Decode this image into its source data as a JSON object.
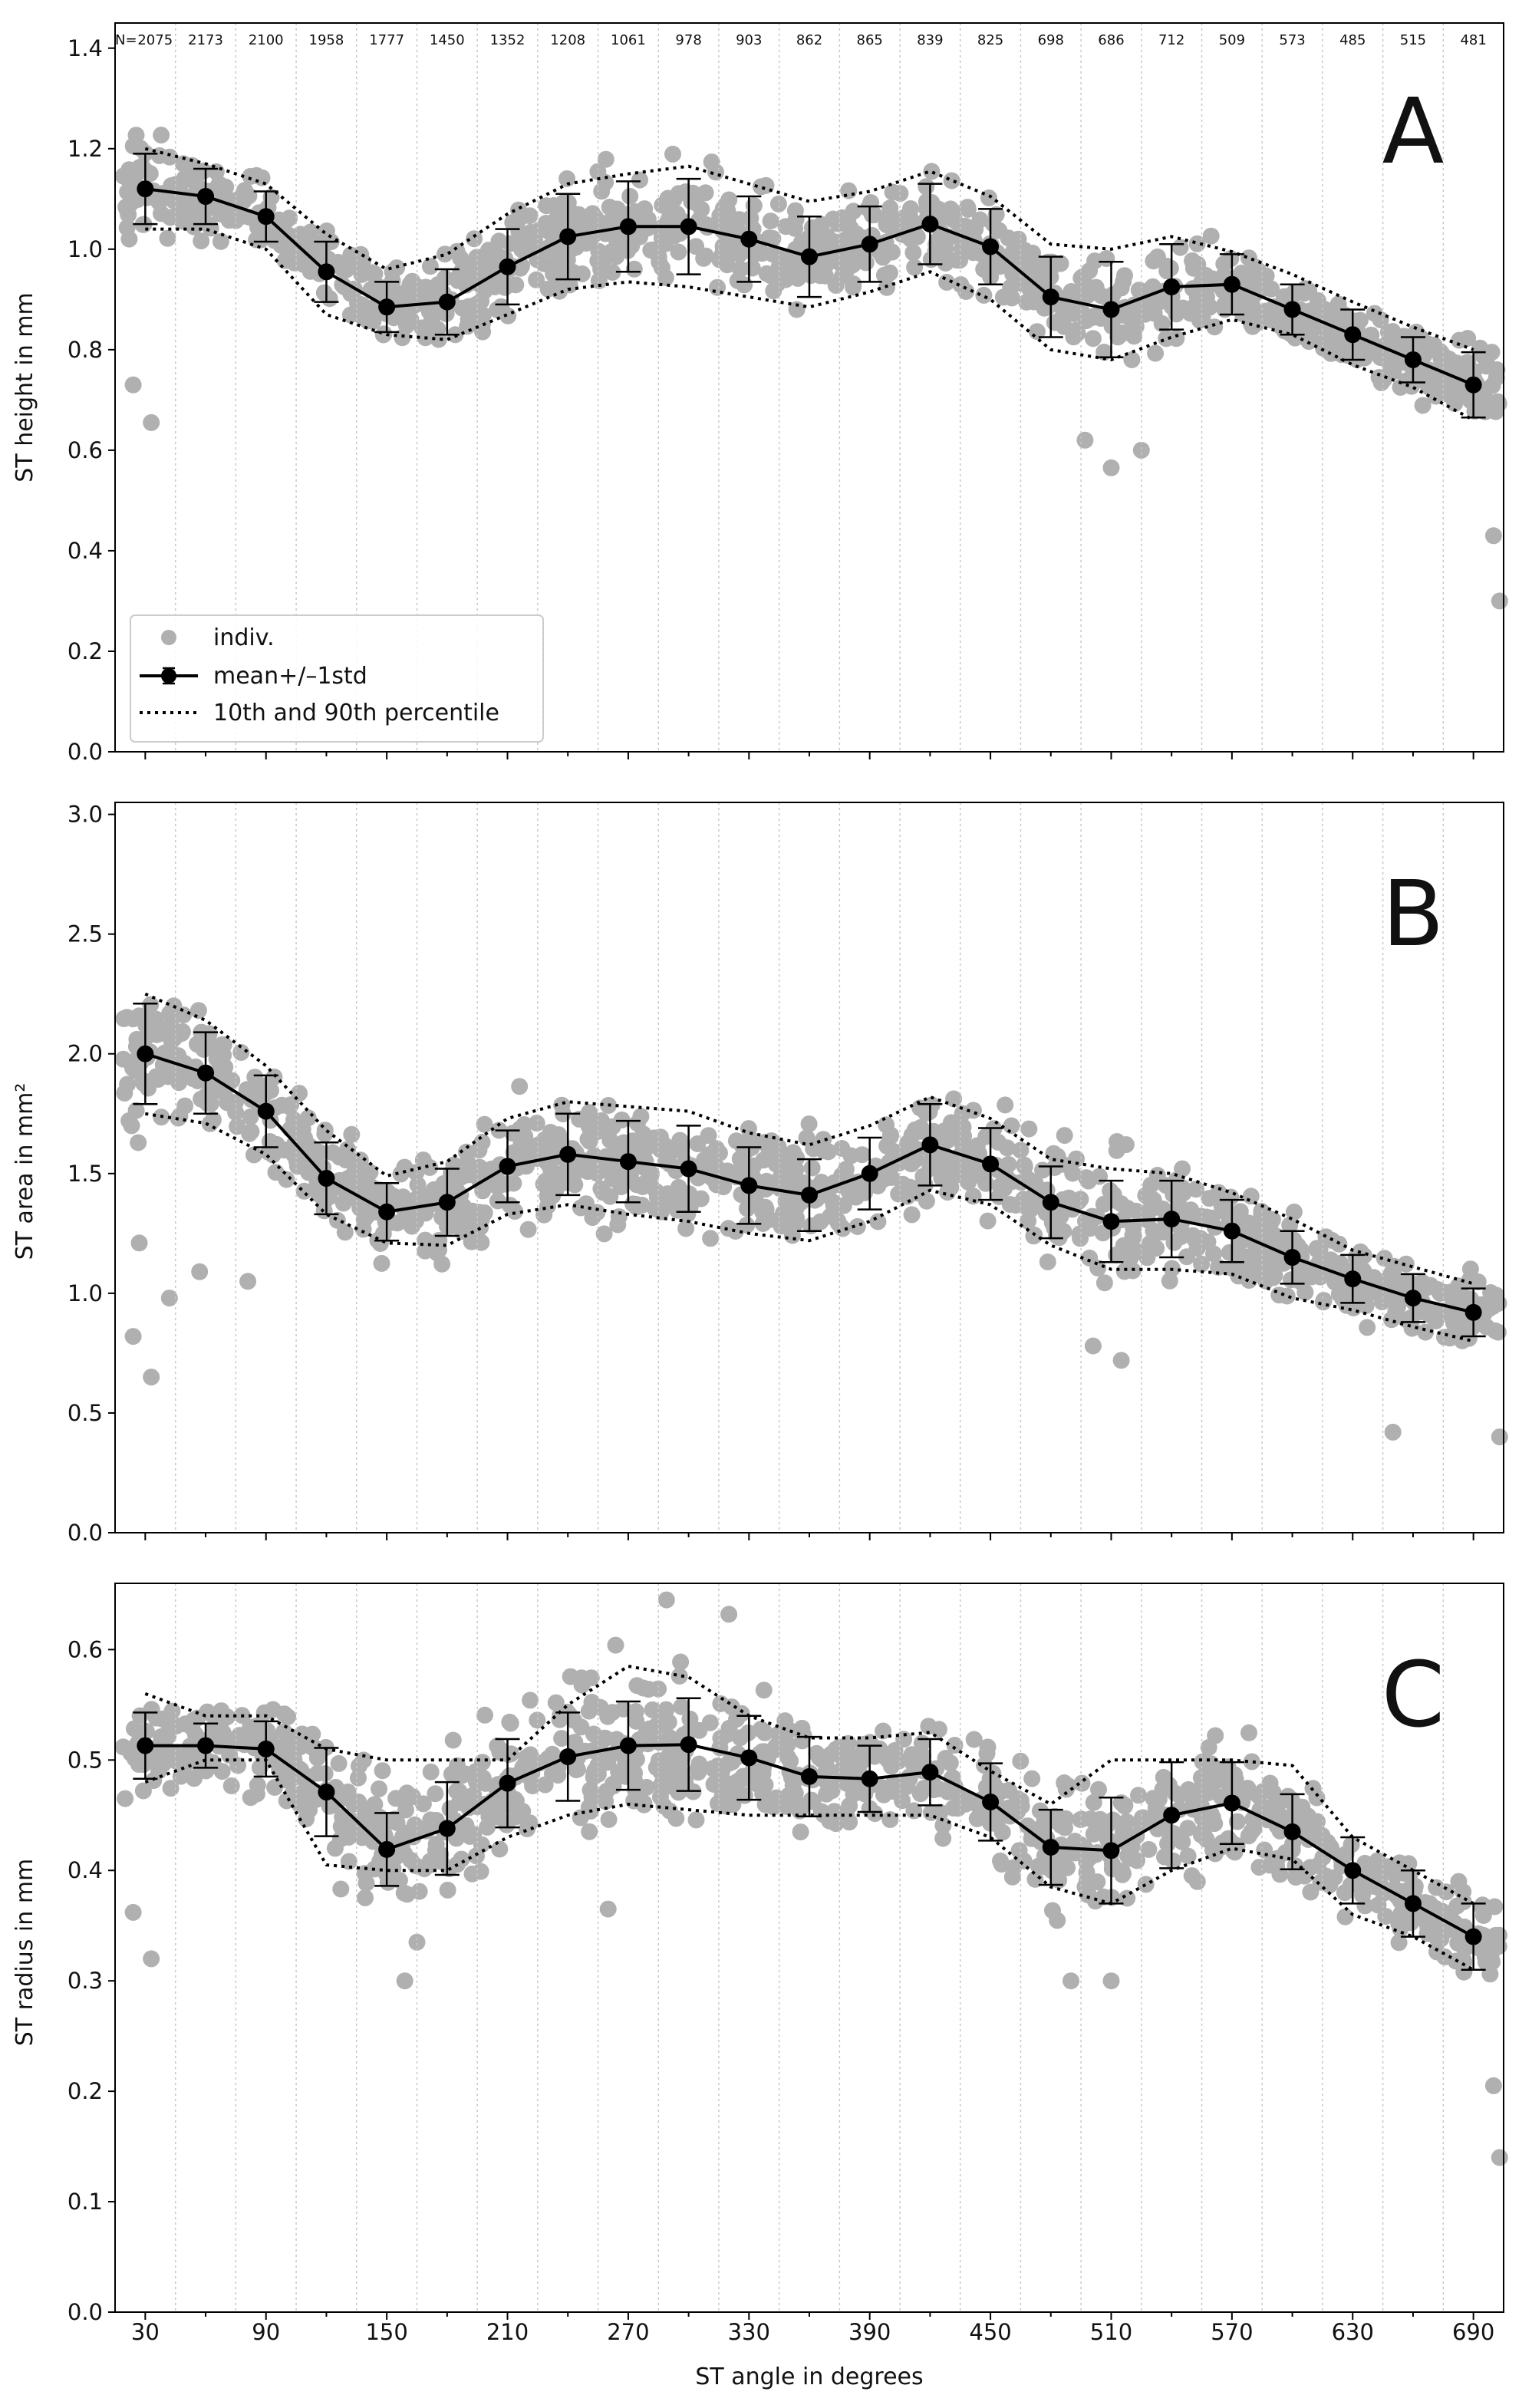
{
  "figure": {
    "xlabel": "ST angle in degrees",
    "x_ticks": [
      30,
      90,
      150,
      210,
      270,
      330,
      390,
      450,
      510,
      570,
      630,
      690
    ],
    "xlim": [
      15,
      705
    ],
    "bins_x": [
      30,
      60,
      90,
      120,
      150,
      180,
      210,
      240,
      270,
      300,
      330,
      360,
      390,
      420,
      450,
      480,
      510,
      540,
      570,
      600,
      630,
      660,
      690
    ],
    "colors": {
      "indiv": "#b0b0b0",
      "mean": "#000000",
      "percentile": "#000000",
      "grid": "#c8c8c8"
    }
  },
  "counts": {
    "prefix": "N=",
    "values": [
      "2075",
      "2173",
      "2100",
      "1958",
      "1777",
      "1450",
      "1352",
      "1208",
      "1061",
      "978",
      "903",
      "862",
      "865",
      "839",
      "825",
      "698",
      "686",
      "712",
      "509",
      "573",
      "485",
      "515",
      "481"
    ]
  },
  "legend": {
    "indiv": "indiv.",
    "mean": "mean+/–1std",
    "percentile": "10th and 90th percentile"
  },
  "chart_data": [
    {
      "type": "scatter",
      "panel": "A",
      "title": "",
      "xlabel": "ST angle in degrees",
      "ylabel": "ST height in mm",
      "ylim": [
        0,
        1.45
      ],
      "y_ticks": [
        0.0,
        0.2,
        0.4,
        0.6,
        0.8,
        1.0,
        1.2,
        1.4
      ],
      "y_tick_labels": [
        "0.0",
        "0.2",
        "0.4",
        "0.6",
        "0.8",
        "1.0",
        "1.2",
        "1.4"
      ],
      "x": [
        30,
        60,
        90,
        120,
        150,
        180,
        210,
        240,
        270,
        300,
        330,
        360,
        390,
        420,
        450,
        480,
        510,
        540,
        570,
        600,
        630,
        660,
        690
      ],
      "series": [
        {
          "name": "mean+/–1std",
          "values": [
            1.12,
            1.105,
            1.065,
            0.955,
            0.885,
            0.895,
            0.965,
            1.025,
            1.045,
            1.045,
            1.02,
            0.985,
            1.01,
            1.05,
            1.005,
            0.905,
            0.88,
            0.925,
            0.93,
            0.88,
            0.83,
            0.78,
            0.73
          ],
          "std": [
            0.07,
            0.055,
            0.05,
            0.06,
            0.05,
            0.065,
            0.075,
            0.085,
            0.09,
            0.095,
            0.085,
            0.08,
            0.075,
            0.08,
            0.075,
            0.08,
            0.095,
            0.085,
            0.06,
            0.05,
            0.05,
            0.045,
            0.065
          ]
        },
        {
          "name": "90th percentile",
          "values": [
            1.2,
            1.17,
            1.13,
            1.03,
            0.96,
            0.99,
            1.07,
            1.13,
            1.15,
            1.165,
            1.13,
            1.095,
            1.115,
            1.155,
            1.105,
            1.01,
            1.0,
            1.025,
            0.995,
            0.95,
            0.895,
            0.845,
            0.8
          ]
        },
        {
          "name": "10th percentile",
          "values": [
            1.04,
            1.04,
            1.0,
            0.87,
            0.83,
            0.82,
            0.87,
            0.92,
            0.935,
            0.925,
            0.905,
            0.885,
            0.915,
            0.955,
            0.9,
            0.8,
            0.78,
            0.825,
            0.86,
            0.83,
            0.77,
            0.725,
            0.66
          ]
        }
      ],
      "scatter_spread": [
        0.12,
        0.1,
        0.09,
        0.1,
        0.09,
        0.1,
        0.12,
        0.13,
        0.14,
        0.15,
        0.13,
        0.12,
        0.12,
        0.13,
        0.12,
        0.12,
        0.13,
        0.12,
        0.1,
        0.09,
        0.08,
        0.08,
        0.1
      ],
      "outliers": [
        [
          24,
          0.73
        ],
        [
          33,
          0.655
        ],
        [
          497,
          0.62
        ],
        [
          510,
          0.565
        ],
        [
          525,
          0.6
        ],
        [
          700,
          0.43
        ],
        [
          703,
          0.3
        ]
      ]
    },
    {
      "type": "scatter",
      "panel": "B",
      "title": "",
      "xlabel": "ST angle in degrees",
      "ylabel": "ST area in mm²",
      "ylim": [
        0,
        3.05
      ],
      "y_ticks": [
        0.0,
        0.5,
        1.0,
        1.5,
        2.0,
        2.5,
        3.0
      ],
      "y_tick_labels": [
        "0.0",
        "0.5",
        "1.0",
        "1.5",
        "2.0",
        "2.5",
        "3.0"
      ],
      "x": [
        30,
        60,
        90,
        120,
        150,
        180,
        210,
        240,
        270,
        300,
        330,
        360,
        390,
        420,
        450,
        480,
        510,
        540,
        570,
        600,
        630,
        660,
        690
      ],
      "series": [
        {
          "name": "mean+/–1std",
          "values": [
            2.0,
            1.92,
            1.76,
            1.48,
            1.34,
            1.38,
            1.53,
            1.58,
            1.55,
            1.52,
            1.45,
            1.41,
            1.5,
            1.62,
            1.54,
            1.38,
            1.3,
            1.31,
            1.26,
            1.15,
            1.06,
            0.98,
            0.92
          ],
          "std": [
            0.21,
            0.17,
            0.15,
            0.15,
            0.12,
            0.14,
            0.15,
            0.17,
            0.17,
            0.18,
            0.16,
            0.15,
            0.15,
            0.17,
            0.15,
            0.15,
            0.17,
            0.16,
            0.13,
            0.11,
            0.1,
            0.1,
            0.1
          ]
        },
        {
          "name": "90th percentile",
          "values": [
            2.25,
            2.14,
            1.95,
            1.68,
            1.49,
            1.55,
            1.73,
            1.8,
            1.78,
            1.76,
            1.67,
            1.62,
            1.7,
            1.82,
            1.73,
            1.56,
            1.52,
            1.5,
            1.42,
            1.31,
            1.18,
            1.11,
            1.04
          ]
        },
        {
          "name": "10th percentile",
          "values": [
            1.75,
            1.71,
            1.58,
            1.33,
            1.21,
            1.2,
            1.33,
            1.37,
            1.33,
            1.3,
            1.25,
            1.22,
            1.3,
            1.43,
            1.37,
            1.2,
            1.1,
            1.1,
            1.08,
            0.98,
            0.93,
            0.86,
            0.8
          ]
        }
      ],
      "scatter_spread": [
        0.4,
        0.33,
        0.28,
        0.26,
        0.22,
        0.25,
        0.28,
        0.3,
        0.31,
        0.32,
        0.29,
        0.27,
        0.27,
        0.3,
        0.27,
        0.26,
        0.3,
        0.28,
        0.24,
        0.2,
        0.19,
        0.19,
        0.2
      ],
      "outliers": [
        [
          24,
          0.82
        ],
        [
          27,
          1.21
        ],
        [
          33,
          0.65
        ],
        [
          42,
          0.98
        ],
        [
          57,
          1.09
        ],
        [
          81,
          1.05
        ],
        [
          501,
          0.78
        ],
        [
          515,
          0.72
        ],
        [
          650,
          0.42
        ],
        [
          703,
          0.4
        ]
      ]
    },
    {
      "type": "scatter",
      "panel": "C",
      "title": "",
      "xlabel": "ST angle in degrees",
      "ylabel": "ST radius in mm",
      "ylim": [
        0,
        0.66
      ],
      "y_ticks": [
        0.0,
        0.1,
        0.2,
        0.3,
        0.4,
        0.5,
        0.6
      ],
      "y_tick_labels": [
        "0.0",
        "0.1",
        "0.2",
        "0.3",
        "0.4",
        "0.5",
        "0.6"
      ],
      "x": [
        30,
        60,
        90,
        120,
        150,
        180,
        210,
        240,
        270,
        300,
        330,
        360,
        390,
        420,
        450,
        480,
        510,
        540,
        570,
        600,
        630,
        660,
        690
      ],
      "series": [
        {
          "name": "mean+/–1std",
          "values": [
            0.513,
            0.513,
            0.51,
            0.471,
            0.419,
            0.438,
            0.479,
            0.503,
            0.513,
            0.514,
            0.502,
            0.485,
            0.483,
            0.489,
            0.462,
            0.421,
            0.418,
            0.45,
            0.461,
            0.435,
            0.4,
            0.37,
            0.34
          ],
          "std": [
            0.03,
            0.02,
            0.025,
            0.04,
            0.033,
            0.042,
            0.04,
            0.04,
            0.04,
            0.042,
            0.038,
            0.036,
            0.03,
            0.03,
            0.035,
            0.034,
            0.048,
            0.048,
            0.037,
            0.034,
            0.03,
            0.03,
            0.03
          ]
        },
        {
          "name": "90th percentile",
          "values": [
            0.56,
            0.54,
            0.54,
            0.51,
            0.5,
            0.5,
            0.5,
            0.55,
            0.585,
            0.575,
            0.54,
            0.52,
            0.52,
            0.525,
            0.49,
            0.46,
            0.5,
            0.5,
            0.5,
            0.495,
            0.43,
            0.4,
            0.37
          ]
        },
        {
          "name": "10th percentile",
          "values": [
            0.48,
            0.5,
            0.5,
            0.405,
            0.4,
            0.4,
            0.43,
            0.45,
            0.46,
            0.455,
            0.45,
            0.45,
            0.45,
            0.45,
            0.43,
            0.385,
            0.37,
            0.4,
            0.42,
            0.41,
            0.36,
            0.34,
            0.31
          ]
        }
      ],
      "scatter_spread": [
        0.06,
        0.05,
        0.05,
        0.07,
        0.07,
        0.08,
        0.08,
        0.08,
        0.08,
        0.08,
        0.07,
        0.06,
        0.05,
        0.05,
        0.06,
        0.07,
        0.08,
        0.08,
        0.07,
        0.06,
        0.05,
        0.05,
        0.06
      ],
      "outliers": [
        [
          24,
          0.362
        ],
        [
          33,
          0.32
        ],
        [
          159,
          0.3
        ],
        [
          165,
          0.335
        ],
        [
          260,
          0.365
        ],
        [
          289,
          0.645
        ],
        [
          320,
          0.632
        ],
        [
          490,
          0.3
        ],
        [
          510,
          0.3
        ],
        [
          700,
          0.205
        ],
        [
          703,
          0.14
        ]
      ]
    }
  ]
}
